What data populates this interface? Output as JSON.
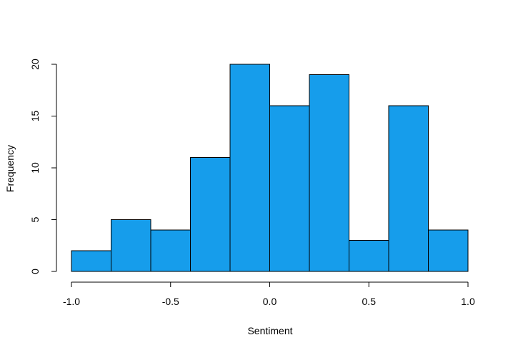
{
  "chart_data": {
    "type": "bar",
    "subtype": "histogram",
    "title": "",
    "xlabel": "Sentiment",
    "ylabel": "Frequency",
    "bins": [
      {
        "from": -1.0,
        "to": -0.8,
        "count": 2
      },
      {
        "from": -0.8,
        "to": -0.6,
        "count": 5
      },
      {
        "from": -0.6,
        "to": -0.4,
        "count": 4
      },
      {
        "from": -0.4,
        "to": -0.2,
        "count": 11
      },
      {
        "from": -0.2,
        "to": 0.0,
        "count": 20
      },
      {
        "from": 0.0,
        "to": 0.2,
        "count": 16
      },
      {
        "from": 0.2,
        "to": 0.4,
        "count": 19
      },
      {
        "from": 0.4,
        "to": 0.6,
        "count": 3
      },
      {
        "from": 0.6,
        "to": 0.8,
        "count": 16
      },
      {
        "from": 0.8,
        "to": 1.0,
        "count": 4
      }
    ],
    "xlim": [
      -1.0,
      1.0
    ],
    "ylim": [
      0,
      20
    ],
    "xticks": [
      {
        "value": -1.0,
        "label": "-1.0"
      },
      {
        "value": -0.5,
        "label": "-0.5"
      },
      {
        "value": 0.0,
        "label": "0.0"
      },
      {
        "value": 0.5,
        "label": "0.5"
      },
      {
        "value": 1.0,
        "label": "1.0"
      }
    ],
    "yticks": [
      {
        "value": 0,
        "label": "0"
      },
      {
        "value": 5,
        "label": "5"
      },
      {
        "value": 10,
        "label": "10"
      },
      {
        "value": 15,
        "label": "15"
      },
      {
        "value": 20,
        "label": "20"
      }
    ],
    "grid": false,
    "legend": "none",
    "colors": {
      "bar_fill": "#169DEB",
      "bar_stroke": "#000000",
      "axis": "#000000"
    }
  }
}
